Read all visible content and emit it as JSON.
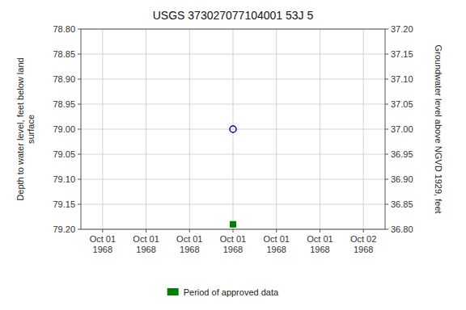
{
  "chart_data": {
    "type": "scatter",
    "title": "USGS 373027077104001 53J  5",
    "y_label": "Depth to water level, feet below land\nsurface",
    "y2_label": "Groundwater level above NGVD 1929, feet",
    "categories": [
      "Oct 01\n1968",
      "Oct 01\n1968",
      "Oct 01\n1968",
      "Oct 01\n1968",
      "Oct 01\n1968",
      "Oct 01\n1968",
      "Oct 02\n1968"
    ],
    "series": [
      {
        "color": "#0000cc",
        "marker": "circle",
        "values": [
          null,
          null,
          null,
          79.0,
          null,
          null,
          null
        ]
      },
      {
        "name": "Period of approved data",
        "color": "#008000",
        "marker": "square",
        "values": [
          null,
          null,
          null,
          79.19,
          null,
          null,
          null
        ]
      }
    ],
    "ylim": [
      79.2,
      78.8
    ],
    "yticks": [
      {
        "value": 78.8,
        "label": "78.80"
      },
      {
        "value": 78.85,
        "label": "78.85"
      },
      {
        "value": 78.9,
        "label": "78.90"
      },
      {
        "value": 78.95,
        "label": "78.95"
      },
      {
        "value": 79.0,
        "label": "79.00"
      },
      {
        "value": 79.05,
        "label": "79.05"
      },
      {
        "value": 79.1,
        "label": "79.10"
      },
      {
        "value": 79.15,
        "label": "79.15"
      },
      {
        "value": 79.2,
        "label": "79.20"
      }
    ],
    "y2lim": [
      36.8,
      37.2
    ],
    "y2ticks": [
      {
        "value": 37.2,
        "label": "37.20"
      },
      {
        "value": 37.15,
        "label": "37.15"
      },
      {
        "value": 37.1,
        "label": "37.10"
      },
      {
        "value": 37.05,
        "label": "37.05"
      },
      {
        "value": 37.0,
        "label": "37.00"
      },
      {
        "value": 36.95,
        "label": "36.95"
      },
      {
        "value": 36.9,
        "label": "36.90"
      },
      {
        "value": 36.85,
        "label": "36.85"
      },
      {
        "value": 36.8,
        "label": "36.80"
      }
    ],
    "grid": true,
    "legend": "bottom"
  }
}
